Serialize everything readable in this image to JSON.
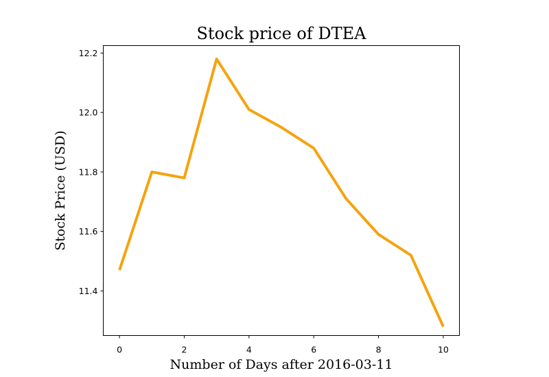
{
  "chart_data": {
    "type": "line",
    "title": "Stock price of DTEA",
    "xlabel": "Number of Days after 2016-03-11",
    "ylabel": "Stock Price (USD)",
    "x": [
      0,
      1,
      2,
      3,
      4,
      5,
      6,
      7,
      8,
      9,
      10
    ],
    "series": [
      {
        "values": [
          11.47,
          11.8,
          11.78,
          12.18,
          12.01,
          11.95,
          11.88,
          11.71,
          11.59,
          11.52,
          11.28
        ]
      }
    ],
    "xlim": [
      -0.5,
      10.5
    ],
    "ylim": [
      11.25,
      12.225
    ],
    "xticks": [
      0,
      2,
      4,
      6,
      8,
      10
    ],
    "yticks": [
      11.4,
      11.6,
      11.8,
      12.0,
      12.2
    ],
    "xtick_labels": [
      "0",
      "2",
      "4",
      "6",
      "8",
      "10"
    ],
    "ytick_labels": [
      "11.4",
      "11.6",
      "11.8",
      "12.0",
      "12.2"
    ],
    "grid": false,
    "line_color": "#f5a30f"
  }
}
